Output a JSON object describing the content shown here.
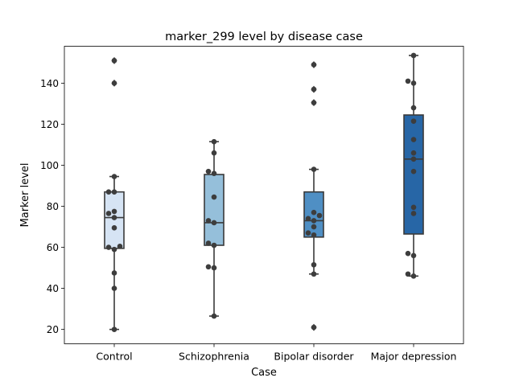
{
  "chart_data": {
    "type": "box",
    "title": "marker_299 level by disease case",
    "xlabel": "Case",
    "ylabel": "Marker level",
    "ylim": [
      13,
      158
    ],
    "yticks": [
      20,
      40,
      60,
      80,
      100,
      120,
      140
    ],
    "categories": [
      "Control",
      "Schizophrenia",
      "Bipolar disorder",
      "Major depression"
    ],
    "colors": [
      "#d6e4f4",
      "#95bfda",
      "#4f8fc4",
      "#2766a6"
    ],
    "boxes": [
      {
        "q1": 59.5,
        "median": 74.5,
        "q3": 87,
        "whisker_low": 20,
        "whisker_high": 94.5,
        "outliers": [
          140,
          151
        ]
      },
      {
        "q1": 61,
        "median": 72,
        "q3": 95.5,
        "whisker_low": 26.5,
        "whisker_high": 111.5,
        "outliers": []
      },
      {
        "q1": 65,
        "median": 73,
        "q3": 87,
        "whisker_low": 47,
        "whisker_high": 98,
        "outliers": [
          21,
          130.5,
          137,
          149
        ]
      },
      {
        "q1": 66.5,
        "median": 103,
        "q3": 124.5,
        "whisker_low": 46,
        "whisker_high": 153.5,
        "outliers": []
      }
    ],
    "points": [
      [
        20,
        40,
        47.5,
        59,
        60,
        60.5,
        69.5,
        74.5,
        76.5,
        77.5,
        87,
        87,
        94.5,
        140,
        151
      ],
      [
        26.5,
        50,
        50.5,
        61,
        62,
        72,
        73,
        84.5,
        96,
        97,
        106,
        111.5
      ],
      [
        21,
        47,
        51.5,
        66,
        67,
        70,
        73,
        74,
        75.5,
        77,
        98,
        130.5,
        137,
        149
      ],
      [
        46,
        47,
        56,
        57,
        76.5,
        79.5,
        97,
        103,
        106,
        112.5,
        121.5,
        128,
        140,
        141,
        153.5
      ]
    ]
  }
}
